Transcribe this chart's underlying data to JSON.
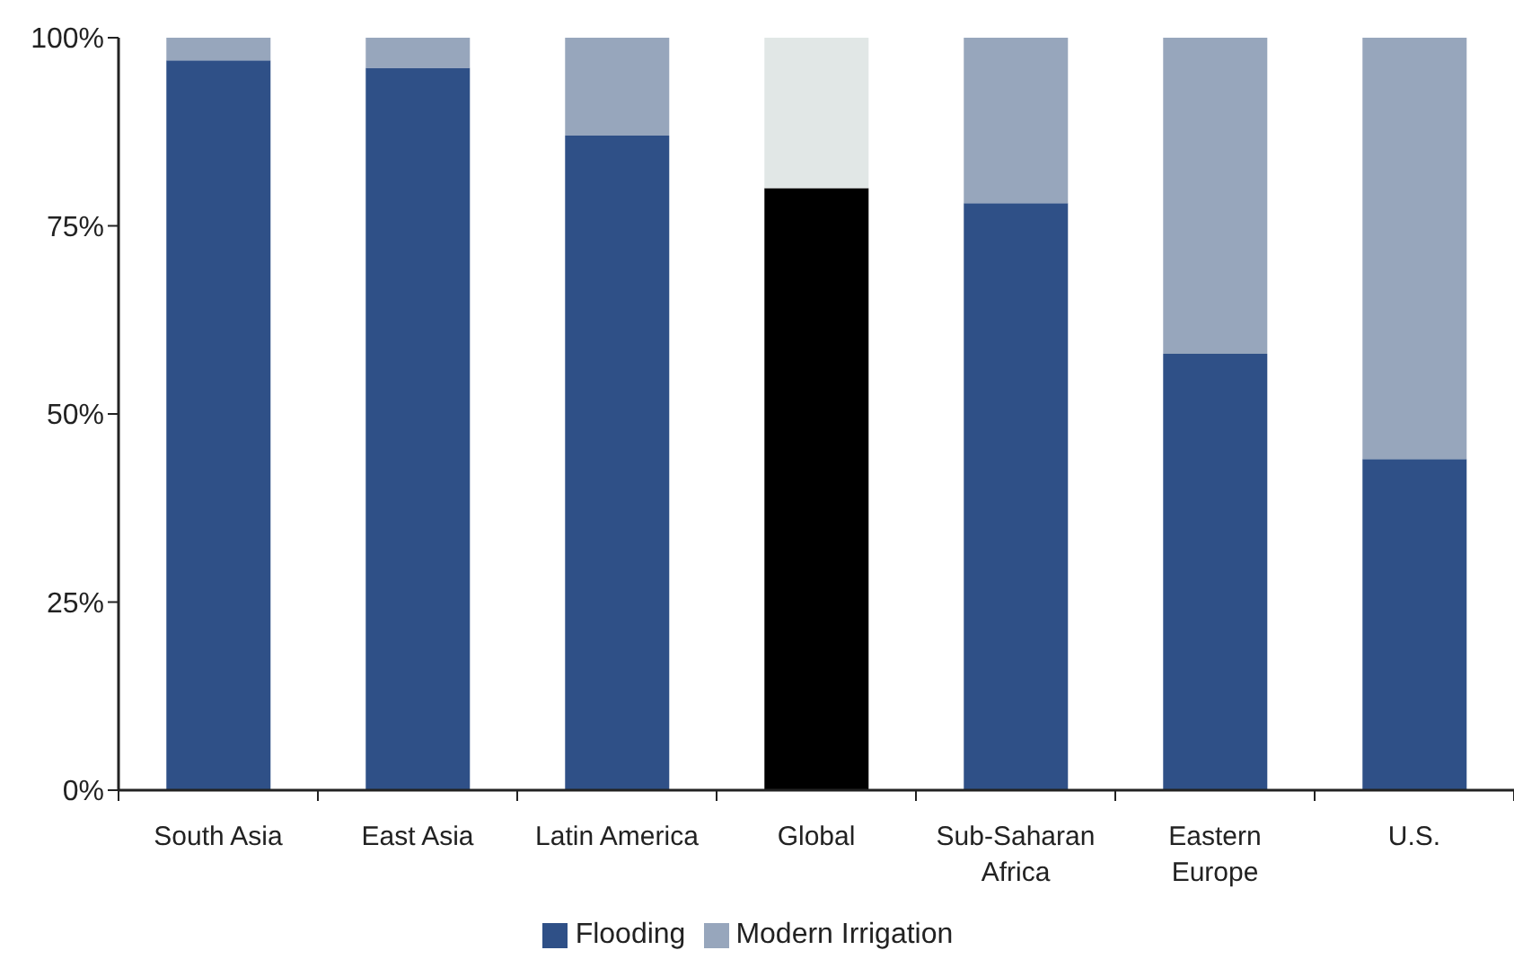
{
  "chart_data": {
    "type": "bar",
    "stacked": true,
    "categories": [
      "South Asia",
      "East Asia",
      "Latin America",
      "Global",
      "Sub-Saharan Africa",
      "Eastern Europe",
      "U.S."
    ],
    "series": [
      {
        "name": "Flooding",
        "color": "#2f5087",
        "colors": [
          "#2f5087",
          "#2f5087",
          "#2f5087",
          "#000000",
          "#2f5087",
          "#2f5087",
          "#2f5087"
        ],
        "values": [
          97,
          96,
          87,
          80,
          78,
          58,
          44
        ]
      },
      {
        "name": "Modern Irrigation",
        "color": "#97a6bc",
        "colors": [
          "#97a6bc",
          "#97a6bc",
          "#97a6bc",
          "#e1e7e6",
          "#97a6bc",
          "#97a6bc",
          "#97a6bc"
        ],
        "values": [
          3,
          4,
          13,
          20,
          22,
          42,
          56
        ]
      }
    ],
    "ylim": [
      0,
      100
    ],
    "yticks": [
      {
        "value": 0,
        "label": "0%"
      },
      {
        "value": 25,
        "label": "25%"
      },
      {
        "value": 50,
        "label": "50%"
      },
      {
        "value": 75,
        "label": "75%"
      },
      {
        "value": 100,
        "label": "100%"
      }
    ],
    "legend": "bottom"
  }
}
